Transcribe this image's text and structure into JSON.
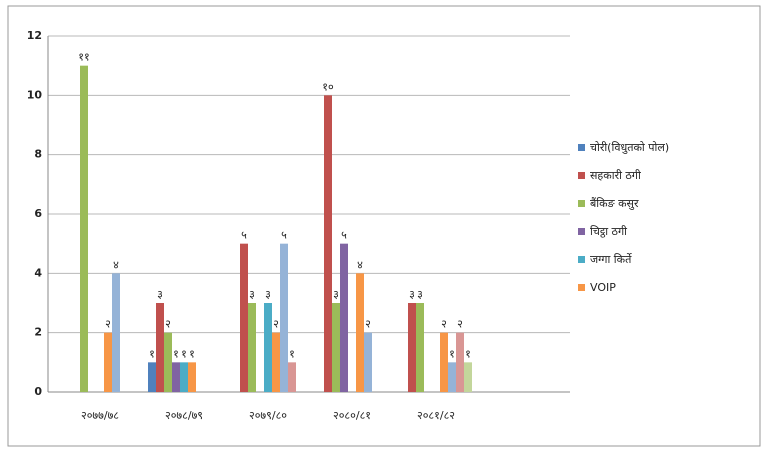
{
  "chart_data": {
    "type": "bar",
    "categories": [
      "२०७७/७८",
      "२०७८/७९",
      "२०७९/८०",
      "२०८०/८१",
      "२०८१/८२"
    ],
    "series": [
      {
        "name": "चोरी(विधुतको पोल)",
        "color": "#4f81bd",
        "values": [
          null,
          1,
          null,
          null,
          null
        ],
        "value_labels": [
          null,
          "१",
          null,
          null,
          null
        ]
      },
      {
        "name": "सहकारी ठगी",
        "color": "#c0504d",
        "values": [
          null,
          3,
          5,
          10,
          3
        ],
        "value_labels": [
          null,
          "३",
          "५",
          "१०",
          "३"
        ]
      },
      {
        "name": "बैंकिङ कसुर",
        "color": "#9bbb59",
        "values": [
          11,
          2,
          3,
          3,
          3
        ],
        "value_labels": [
          "११",
          "२",
          "३",
          "३",
          "३"
        ]
      },
      {
        "name": "चिट्ठा ठगी",
        "color": "#8064a2",
        "values": [
          null,
          1,
          null,
          5,
          null
        ],
        "value_labels": [
          null,
          "१",
          null,
          "५",
          null
        ]
      },
      {
        "name": "जग्गा किर्ते",
        "color": "#4bacc6",
        "values": [
          null,
          1,
          3,
          null,
          null
        ],
        "value_labels": [
          null,
          "१",
          "३",
          null,
          null
        ]
      },
      {
        "name": "VOIP",
        "color": "#f79646",
        "values": [
          2,
          1,
          2,
          4,
          2
        ],
        "value_labels": [
          "२",
          "१",
          "२",
          "४",
          "२"
        ]
      },
      {
        "color": "#95b3d7",
        "values": [
          4,
          null,
          5,
          2,
          1
        ],
        "value_labels": [
          "४",
          null,
          "५",
          "२",
          "१"
        ]
      },
      {
        "color": "#d99694",
        "values": [
          null,
          null,
          1,
          null,
          2
        ],
        "value_labels": [
          null,
          null,
          "१",
          null,
          "२"
        ]
      },
      {
        "color": "#c3d69b",
        "values": [
          null,
          null,
          null,
          null,
          1
        ],
        "value_labels": [
          null,
          null,
          null,
          null,
          "१"
        ]
      }
    ],
    "ylim": [
      0,
      12
    ],
    "yticks": [
      0,
      2,
      4,
      6,
      8,
      10,
      12
    ],
    "grid": true
  }
}
